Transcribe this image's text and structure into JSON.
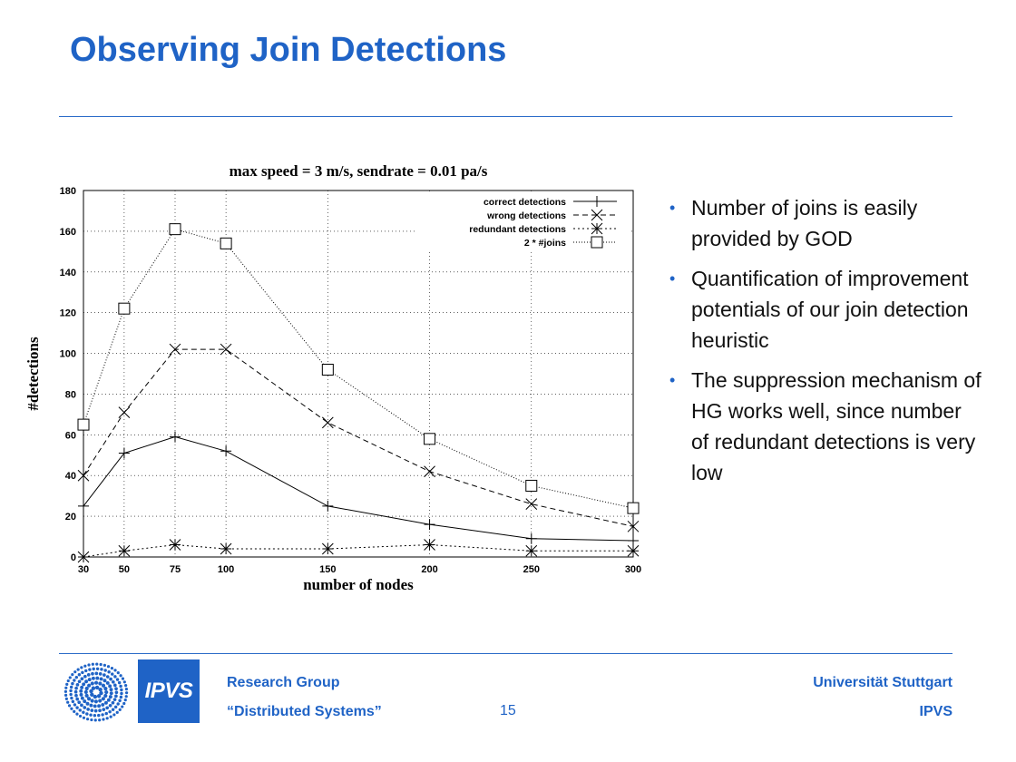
{
  "slide": {
    "title": "Observing Join Detections",
    "bullets": [
      "Number of joins is easily provided by GOD",
      "Quantification of improvement potentials of our join detection heuristic",
      "The suppression mechanism of HG works well, since number of redundant detections is very low"
    ],
    "bullet_color": "#1f63c6",
    "accent_color": "#1f63c6"
  },
  "footer": {
    "logo_text": "IPVS",
    "left_line1": "Research Group",
    "left_line2": "“Distributed Systems”",
    "page_number": "15",
    "right_line1": "Universität Stuttgart",
    "right_line2": "IPVS"
  },
  "chart_data": {
    "type": "line",
    "title": "max speed = 3 m/s, sendrate = 0.01 pa/s",
    "xlabel": "number of nodes",
    "ylabel": "#detections",
    "x": [
      30,
      50,
      75,
      100,
      150,
      200,
      250,
      300
    ],
    "xticks": [
      "30",
      "50",
      "75",
      "100",
      "150",
      "200",
      "250",
      "300"
    ],
    "ylim": [
      0,
      180
    ],
    "yticks": [
      "0",
      "20",
      "40",
      "60",
      "80",
      "100",
      "120",
      "140",
      "160",
      "180"
    ],
    "grid": true,
    "legend_position": "top-right",
    "series": [
      {
        "name": "correct detections",
        "marker": "plus",
        "dash": "solid",
        "values": [
          25,
          51,
          59,
          52,
          25,
          16,
          9,
          8
        ]
      },
      {
        "name": "wrong detections",
        "marker": "cross",
        "dash": "dashed",
        "values": [
          40,
          71,
          102,
          102,
          66,
          42,
          26,
          15
        ]
      },
      {
        "name": "redundant detections",
        "marker": "star",
        "dash": "dotted",
        "values": [
          0,
          3,
          6,
          4,
          4,
          6,
          3,
          3
        ]
      },
      {
        "name": "2 * #joins",
        "marker": "square",
        "dash": "finedotted",
        "values": [
          65,
          122,
          161,
          154,
          92,
          58,
          35,
          24
        ]
      }
    ]
  }
}
